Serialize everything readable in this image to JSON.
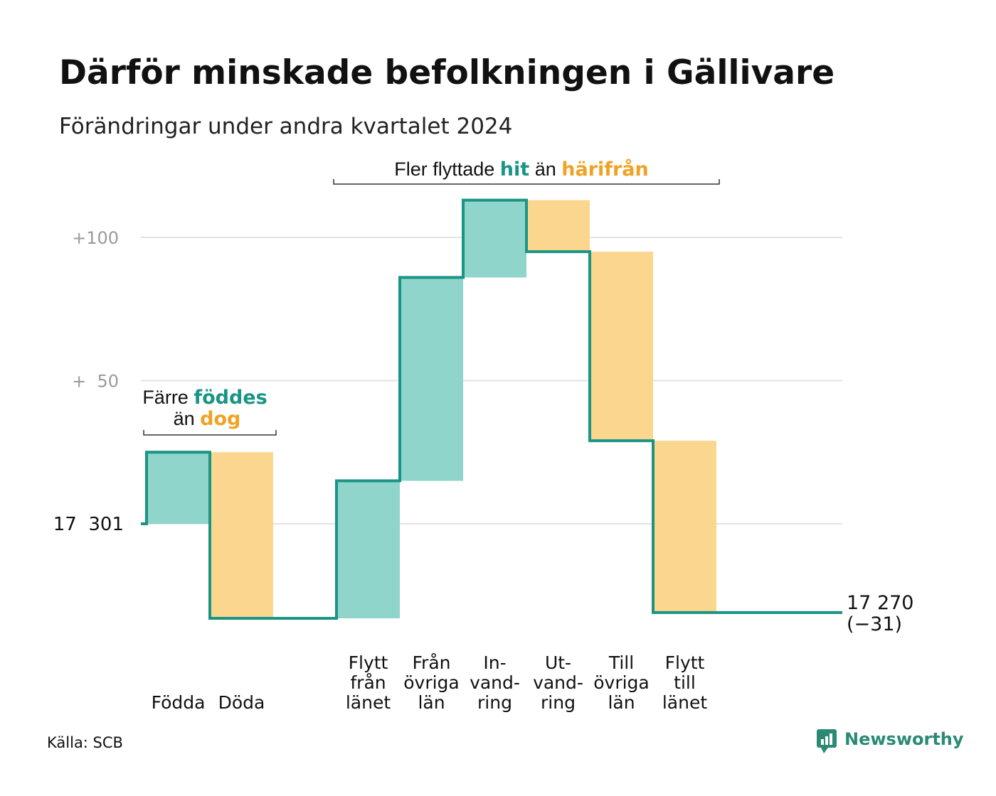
{
  "colors": {
    "increase": "#8fd5cb",
    "decrease": "#fbd68f",
    "line": "#1a9484",
    "accent_teal": "#1a9484",
    "accent_orange": "#f0a224",
    "grid": "#e3e3e3",
    "brand": "#2a8a76"
  },
  "chart_data": {
    "type": "waterfall",
    "title": "Därför minskade befolkningen i Gällivare",
    "subtitle": "Förändringar under andra kvartalet 2024",
    "start_value": 17301,
    "end_value": 17270,
    "steps": [
      {
        "label_lines": [
          "Födda"
        ],
        "value": 25
      },
      {
        "label_lines": [
          "Döda"
        ],
        "value": -58
      },
      {
        "label_lines": [
          "Flytt",
          "från",
          "länet"
        ],
        "value": 48
      },
      {
        "label_lines": [
          "Från",
          "övriga",
          "län"
        ],
        "value": 71
      },
      {
        "label_lines": [
          "In-",
          "vand-",
          "ring"
        ],
        "value": 27
      },
      {
        "label_lines": [
          "Ut-",
          "vand-",
          "ring"
        ],
        "value": -18
      },
      {
        "label_lines": [
          "Till",
          "övriga",
          "län"
        ],
        "value": -66
      },
      {
        "label_lines": [
          "Flytt",
          "till",
          "länet"
        ],
        "value": -60
      }
    ],
    "gap_after_index": 1,
    "yaxis": {
      "ticks": [
        {
          "value": 0,
          "label": "17  301",
          "style": "dark"
        },
        {
          "value": 50,
          "label": "+  50",
          "style": "gray"
        },
        {
          "value": 100,
          "label": "+100",
          "style": "gray"
        }
      ],
      "ylim": [
        -40,
        115
      ]
    },
    "grid": true,
    "annotations": {
      "natural": {
        "line1_pre": "Färre ",
        "line1_highlight": "föddes",
        "line2_pre": "än ",
        "line2_highlight": "dog"
      },
      "migration": {
        "pre": "Fler flyttade ",
        "highlight1": "hit",
        "mid": " än ",
        "highlight2": "härifrån"
      }
    },
    "end_label_lines": [
      "17 270",
      "(−31)"
    ]
  },
  "footer": {
    "source": "Källa: SCB",
    "brand": "Newsworthy"
  }
}
